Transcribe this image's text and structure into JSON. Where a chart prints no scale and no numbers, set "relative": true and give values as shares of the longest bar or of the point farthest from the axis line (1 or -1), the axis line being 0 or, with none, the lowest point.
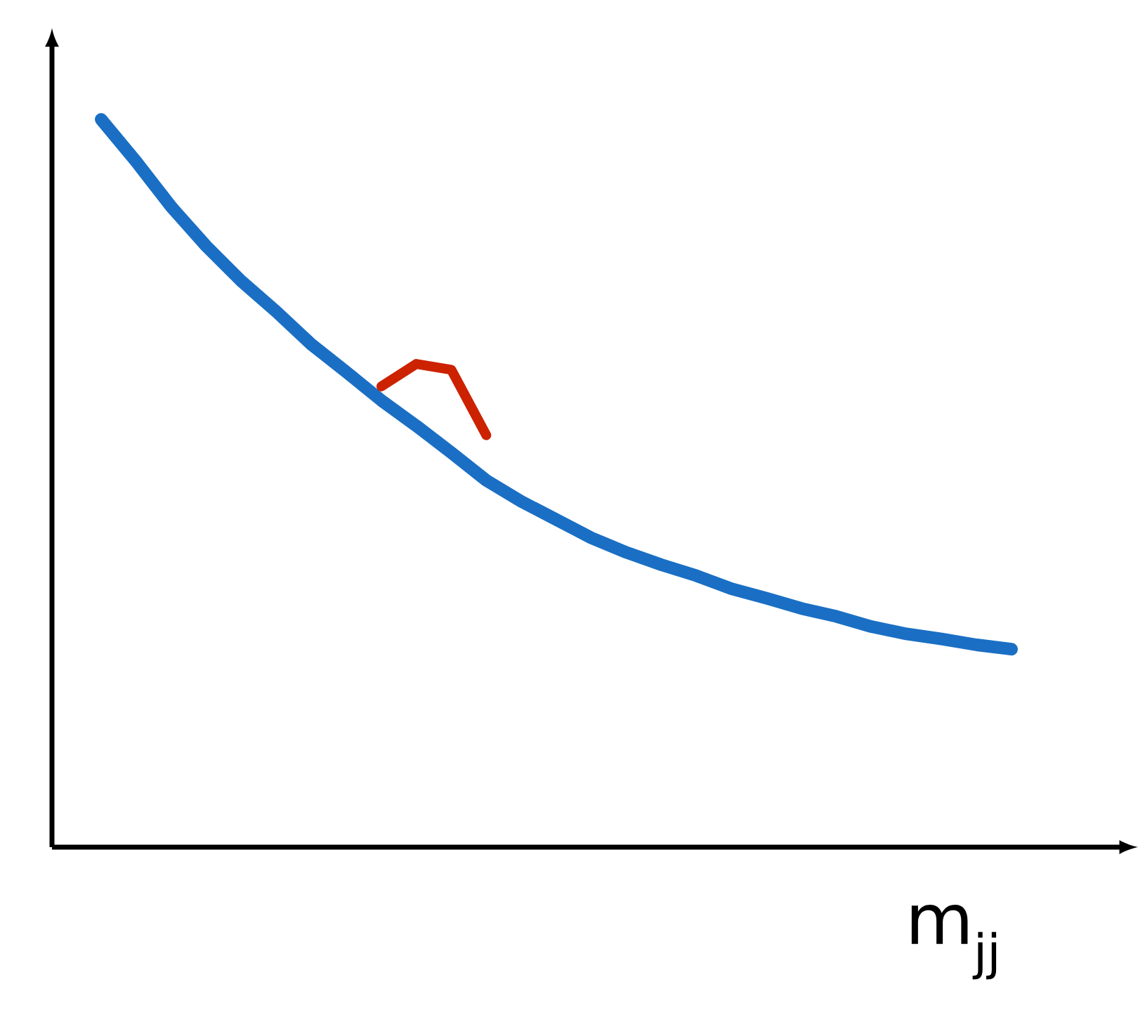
{
  "chart_data": {
    "type": "line",
    "relative": true,
    "xlabel": "m$_{jj}$",
    "categories": [
      null,
      null,
      null,
      null,
      null,
      null,
      null,
      null,
      null,
      null,
      null,
      null,
      null,
      null,
      null,
      null,
      null,
      null,
      null,
      null,
      null,
      null,
      null,
      null,
      null,
      null,
      null
    ],
    "series": [
      {
        "color": "#1a6fc4",
        "values": [
          1.0,
          0.942,
          0.88,
          0.826,
          0.778,
          0.736,
          0.691,
          0.653,
          0.614,
          0.579,
          0.542,
          0.504,
          0.475,
          0.45,
          0.425,
          0.405,
          0.388,
          0.373,
          0.355,
          0.342,
          0.328,
          0.317,
          0.303,
          0.293,
          0.286,
          0.278,
          0.272
        ]
      },
      {
        "color": "#cc2200",
        "values": [
          null,
          null,
          null,
          null,
          null,
          null,
          null,
          null,
          0.633,
          0.664,
          0.656,
          0.566,
          null,
          null,
          null,
          null,
          null,
          null,
          null,
          null,
          null,
          null,
          null,
          null,
          null,
          null,
          null
        ]
      }
    ]
  }
}
